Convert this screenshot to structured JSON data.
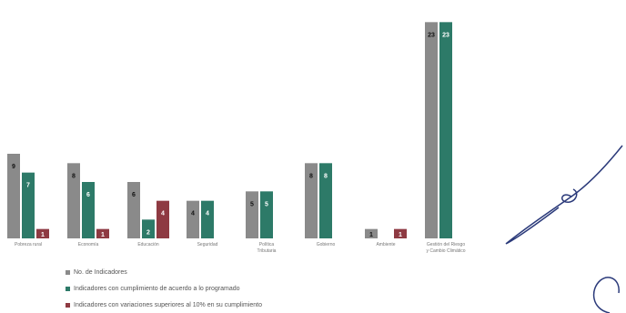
{
  "chart_data": {
    "type": "bar",
    "categories": [
      "Pobreza rural",
      "Economía",
      "Educación",
      "Seguridad",
      "Política Tributaria",
      "Gobierno",
      "Ambiente",
      "Gestión del Riesgo y Cambio Climático"
    ],
    "series": [
      {
        "name": "No. de Indicadores",
        "color": "#8a8a8a",
        "values": [
          9,
          8,
          6,
          4,
          5,
          8,
          1,
          23
        ]
      },
      {
        "name": "Indicadores con cumplimiento de acuerdo a lo programado",
        "color": "#2d7a68",
        "values": [
          7,
          6,
          2,
          4,
          5,
          8,
          0,
          23
        ]
      },
      {
        "name": "Indicadores con variaciones superiores al 10% en su cumplimiento",
        "color": "#8e3a42",
        "values": [
          1,
          1,
          4,
          0,
          0,
          0,
          1,
          0
        ]
      }
    ],
    "ylim": [
      0,
      24
    ]
  }
}
